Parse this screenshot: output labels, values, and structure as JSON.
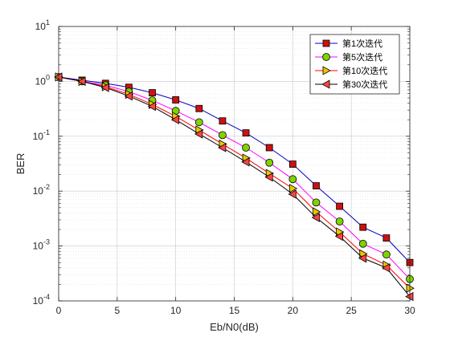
{
  "chart_data": {
    "type": "line",
    "title": "",
    "xlabel": "Eb/N0(dB)",
    "ylabel": "BER",
    "xlim": [
      0,
      30
    ],
    "ylim": [
      0.0001,
      10
    ],
    "yscale": "log",
    "grid": true,
    "legend_position": "top-right",
    "x_ticks": [
      0,
      5,
      10,
      15,
      20,
      25,
      30
    ],
    "y_tick_labels": [
      {
        "base": "10",
        "exp": "-4",
        "value": 0.0001
      },
      {
        "base": "10",
        "exp": "-3",
        "value": 0.001
      },
      {
        "base": "10",
        "exp": "-2",
        "value": 0.01
      },
      {
        "base": "10",
        "exp": "-1",
        "value": 0.1
      },
      {
        "base": "10",
        "exp": "0",
        "value": 1
      },
      {
        "base": "10",
        "exp": "1",
        "value": 10
      }
    ],
    "x": [
      0,
      2,
      4,
      6,
      8,
      10,
      12,
      14,
      16,
      18,
      20,
      22,
      24,
      26,
      28,
      30
    ],
    "series": [
      {
        "name": "第1次迭代",
        "color": "#0000cc",
        "marker": "square",
        "marker_color": "#cc1111",
        "values": [
          1.2,
          1.05,
          0.92,
          0.78,
          0.62,
          0.46,
          0.32,
          0.19,
          0.115,
          0.062,
          0.031,
          0.0125,
          0.0053,
          0.0022,
          0.0014,
          0.0005
        ]
      },
      {
        "name": "第5次迭代",
        "color": "#ff00ff",
        "marker": "circle",
        "marker_color": "#7fd400",
        "values": [
          1.2,
          1.0,
          0.85,
          0.65,
          0.45,
          0.29,
          0.18,
          0.105,
          0.062,
          0.033,
          0.0165,
          0.0062,
          0.0028,
          0.0011,
          0.0007,
          0.00025
        ]
      },
      {
        "name": "第10次迭代",
        "color": "#ff0000",
        "marker": "triangle-right",
        "marker_color": "#e8c800",
        "values": [
          1.2,
          1.0,
          0.8,
          0.58,
          0.38,
          0.23,
          0.13,
          0.072,
          0.04,
          0.021,
          0.0112,
          0.0042,
          0.0018,
          0.00072,
          0.00045,
          0.00017
        ]
      },
      {
        "name": "第30次迭代",
        "color": "#000000",
        "marker": "triangle-left",
        "marker_color": "#ff4444",
        "values": [
          1.2,
          1.0,
          0.77,
          0.54,
          0.35,
          0.2,
          0.11,
          0.062,
          0.034,
          0.018,
          0.0088,
          0.0033,
          0.0015,
          0.0006,
          0.0004,
          0.00012
        ]
      }
    ]
  }
}
